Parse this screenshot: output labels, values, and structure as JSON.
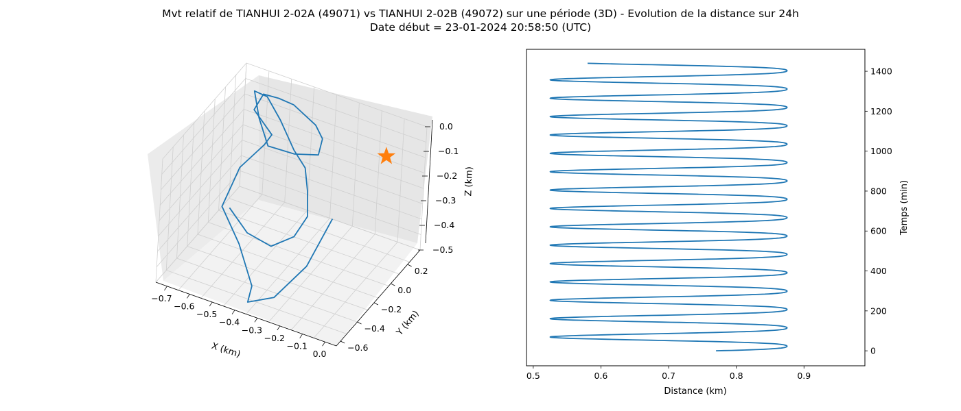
{
  "title": {
    "line1": "Mvt relatif de TIANHUI 2-02A (49071) vs TIANHUI 2-02B (49072) sur une période (3D) - Evolution de la distance sur 24h",
    "line2": "Date début = 23-01-2024 20:58:50 (UTC)"
  },
  "colors": {
    "series": "#1f77b4",
    "star": "#ff7f0e",
    "pane_floor": "#f2f2f2",
    "pane_wall": "#e8e8e8",
    "grid": "#cccccc"
  },
  "chart_data": [
    {
      "type": "line3d",
      "xlabel": "X (km)",
      "ylabel": "Y (km)",
      "zlabel": "Z (km)",
      "xlim": [
        -0.75,
        0.05
      ],
      "ylim": [
        -0.65,
        0.35
      ],
      "zlim": [
        -0.5,
        0.0
      ],
      "xticks": [
        "−0.7",
        "−0.6",
        "−0.5",
        "−0.4",
        "−0.3",
        "−0.2",
        "−0.1",
        "0.0"
      ],
      "yticks": [
        "−0.6",
        "−0.4",
        "−0.2",
        "0.0",
        "0.2"
      ],
      "zticks": [
        "0.0",
        "−0.1",
        "−0.2",
        "−0.3",
        "−0.4",
        "−0.5"
      ],
      "grid": true,
      "series": [
        {
          "x": [
            -0.1,
            -0.15,
            -0.25,
            -0.38,
            -0.4,
            -0.5,
            -0.6,
            -0.6,
            -0.55,
            -0.52,
            -0.62,
            -0.6,
            -0.55,
            -0.5,
            -0.4,
            -0.35,
            -0.33,
            -0.4,
            -0.5,
            -0.58,
            -0.64,
            -0.6,
            -0.52,
            -0.42,
            -0.35,
            -0.3,
            -0.26,
            -0.28,
            -0.35,
            -0.45,
            -0.55
          ],
          "y": [
            -0.35,
            -0.5,
            -0.6,
            -0.55,
            -0.45,
            -0.35,
            -0.3,
            -0.1,
            0.05,
            0.05,
            0.1,
            0.15,
            0.2,
            0.25,
            0.25,
            0.2,
            0.1,
            0.0,
            -0.05,
            0.05,
            0.15,
            0.2,
            0.15,
            0.05,
            0.0,
            -0.1,
            -0.2,
            -0.3,
            -0.38,
            -0.4,
            -0.35
          ],
          "z": [
            -0.15,
            -0.3,
            -0.42,
            -0.5,
            -0.48,
            -0.38,
            -0.28,
            -0.2,
            -0.15,
            -0.1,
            -0.05,
            0.0,
            -0.02,
            -0.05,
            -0.1,
            -0.12,
            -0.14,
            -0.12,
            -0.1,
            -0.05,
            0.0,
            -0.03,
            -0.08,
            -0.13,
            -0.16,
            -0.2,
            -0.25,
            -0.3,
            -0.33,
            -0.3,
            -0.25
          ]
        }
      ],
      "marker": {
        "symbol": "star",
        "x": 0.0,
        "y": 0.0,
        "z": 0.0
      }
    },
    {
      "type": "line",
      "xlabel": "Distance (km)",
      "ylabel": "Temps (min)",
      "xlim": [
        0.49,
        0.99
      ],
      "ylim": [
        -75,
        1510
      ],
      "xticks": [
        0.5,
        0.6,
        0.7,
        0.8,
        0.9
      ],
      "yticks": [
        0,
        200,
        400,
        600,
        800,
        1000,
        1200,
        1400
      ],
      "grid": false,
      "series": [
        {
          "t_start": 0,
          "t_end": 1440,
          "t_step": 1,
          "model": "distance = mean + amplitude * sin(2*pi*t/period + phase) + beat * cos(2*pi*t/beat_period)",
          "mean": 0.735,
          "amplitude": 0.175,
          "period": 92,
          "phase": 0.0,
          "beat": 0.035,
          "beat_period": 46
        }
      ]
    }
  ]
}
